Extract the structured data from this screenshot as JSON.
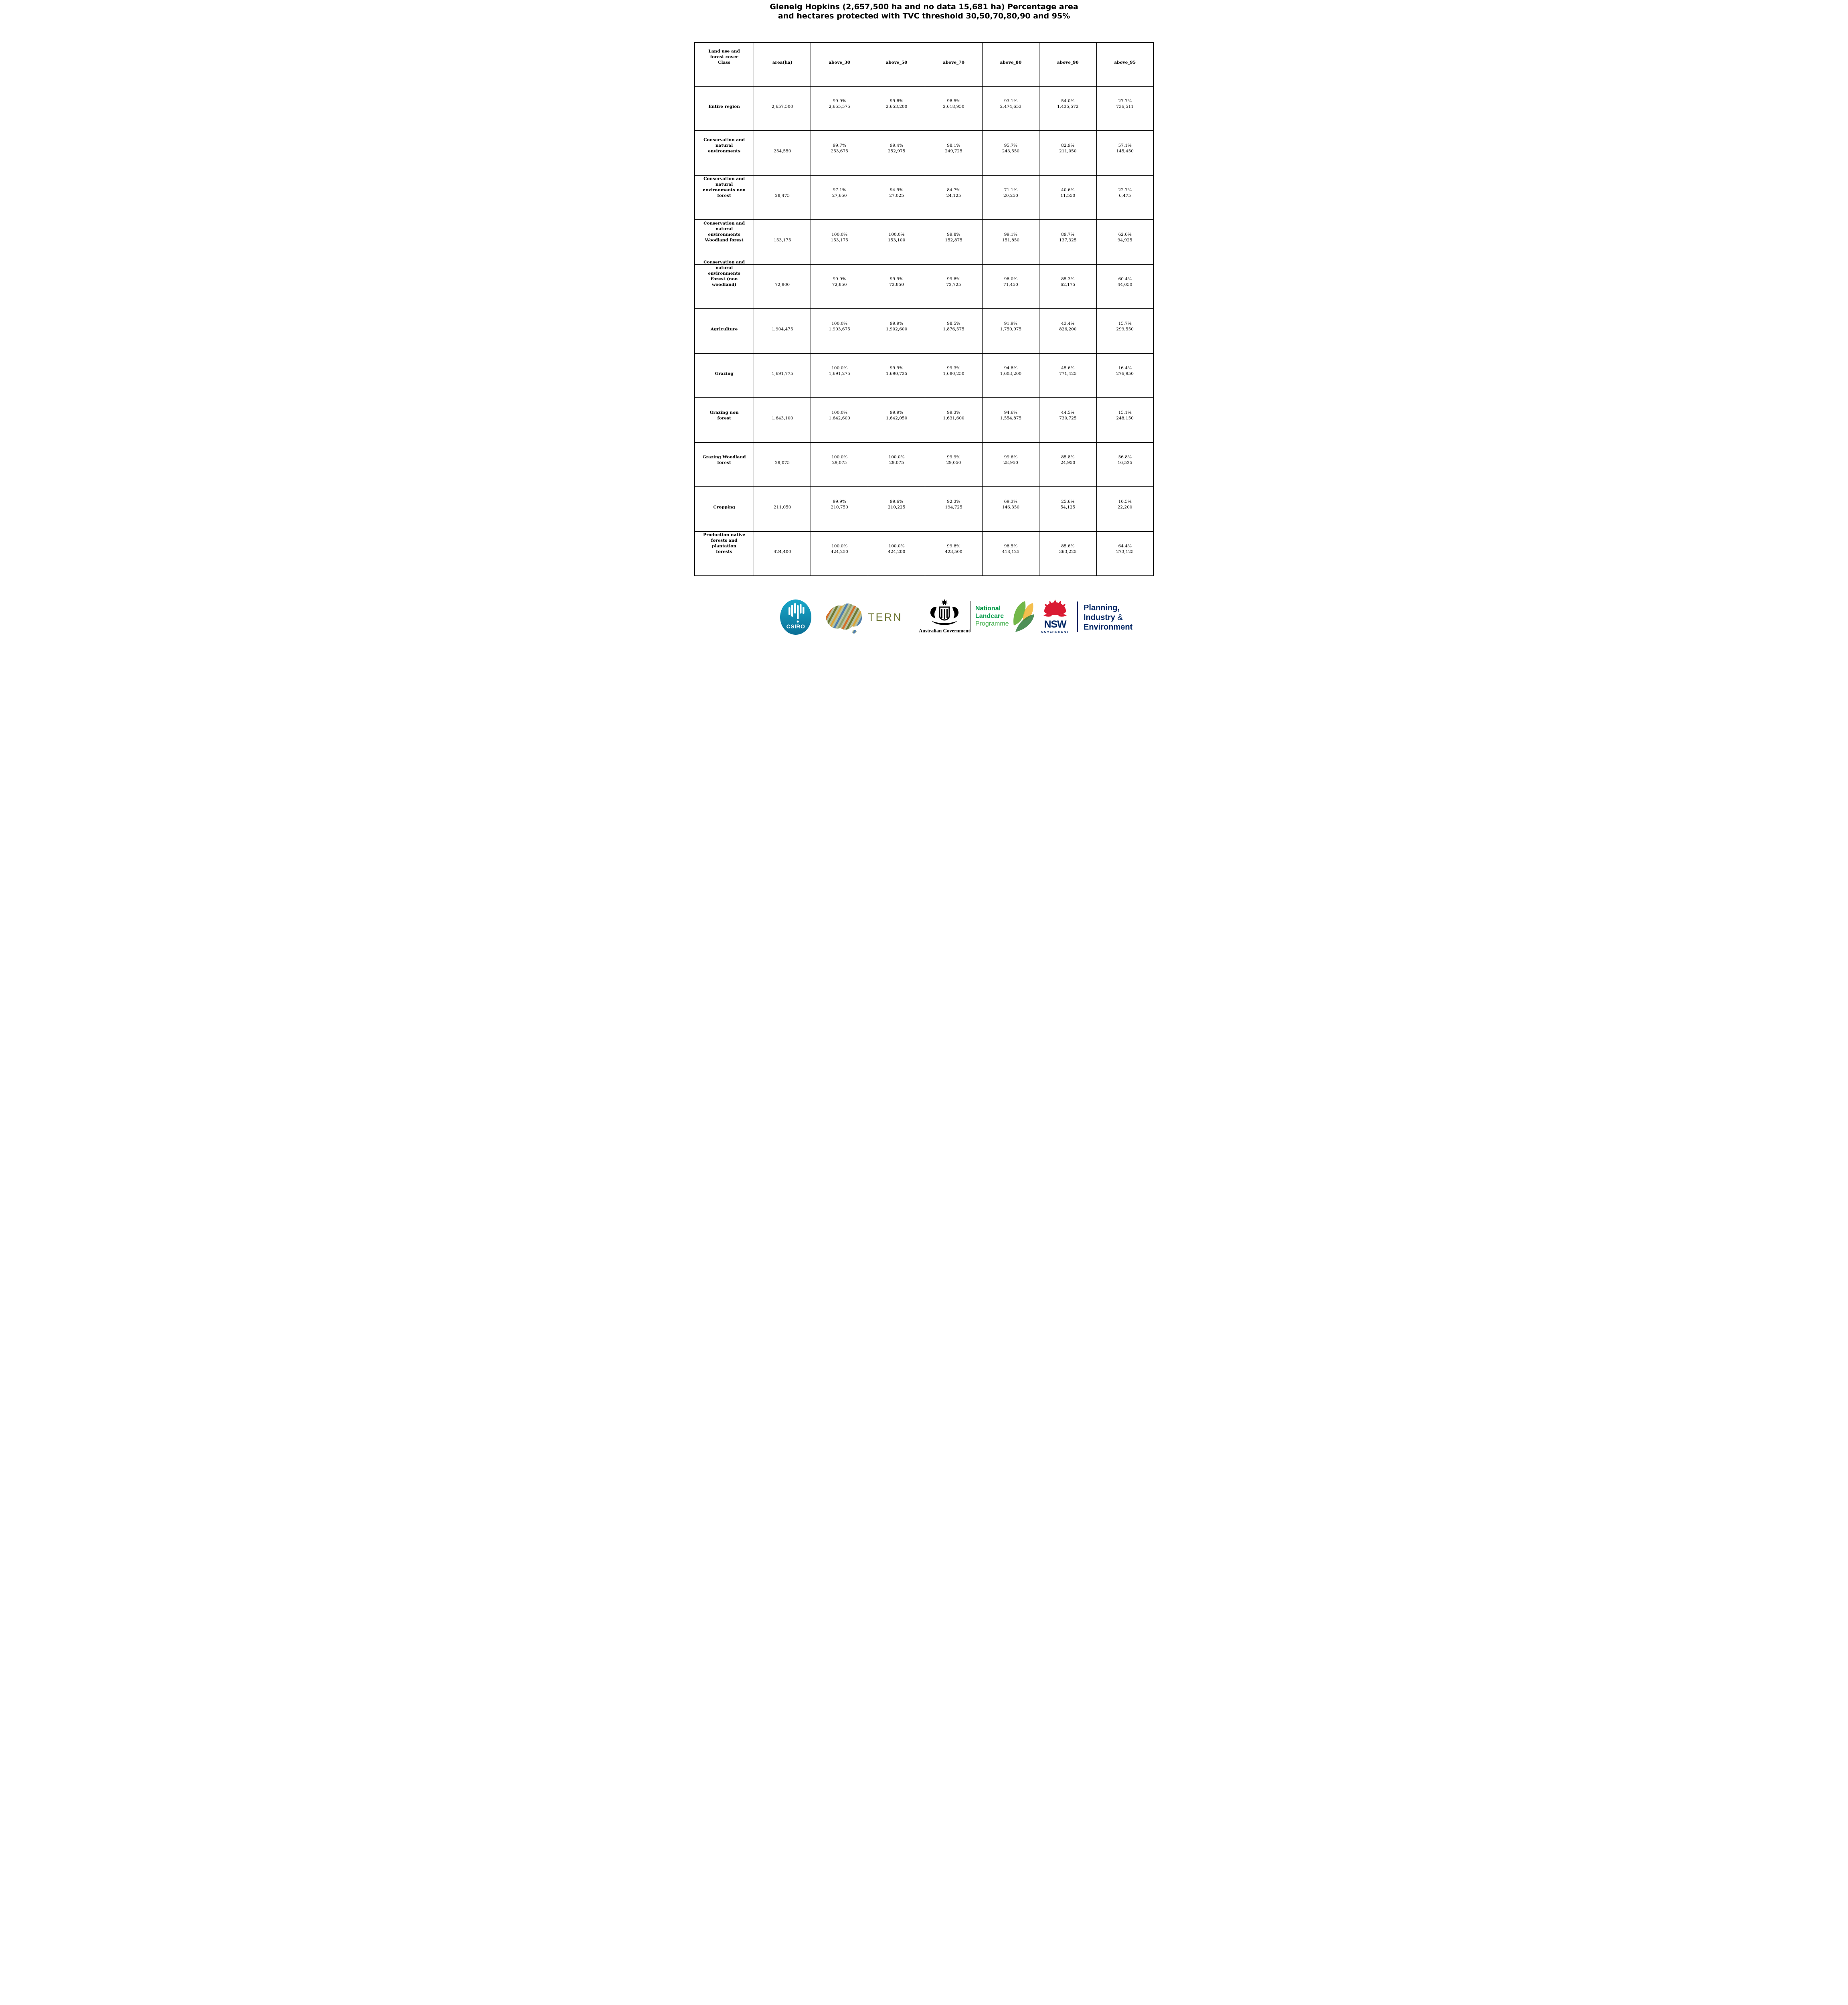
{
  "title": {
    "lines": [
      "Glenelg Hopkins (2,657,500 ha and no data 15,681 ha) Percentage area",
      "and hectares protected with TVC threshold 30,50,70,80,90 and 95%"
    ]
  },
  "chart_data": {
    "type": "table",
    "title": "Glenelg Hopkins (2,657,500 ha and no data 15,681 ha) Percentage area and hectares protected with TVC threshold 30,50,70,80,90 and 95%",
    "region_area_ha": "2,657,500",
    "no_data_ha": "15,681",
    "columns": [
      "Land use and forest cover Class",
      "area(ha)",
      "above_30",
      "above_50",
      "above_70",
      "above_80",
      "above_90",
      "above_95"
    ],
    "column_lines": [
      [
        "Land use and",
        "forest cover",
        "Class"
      ],
      [
        "area(ha)"
      ],
      [
        "above_30"
      ],
      [
        "above_50"
      ],
      [
        "above_70"
      ],
      [
        "above_80"
      ],
      [
        "above_90"
      ],
      [
        "above_95"
      ]
    ],
    "rows": [
      {
        "label": "Entire region",
        "label_lines": [
          "Entire region"
        ],
        "area": "2,657,500",
        "cells": [
          {
            "pct": "99.9%",
            "value": "2,655,575"
          },
          {
            "pct": "99.8%",
            "value": "2,653,200"
          },
          {
            "pct": "98.5%",
            "value": "2,618,950"
          },
          {
            "pct": "93.1%",
            "value": "2,474,653"
          },
          {
            "pct": "54.0%",
            "value": "1,435,572"
          },
          {
            "pct": "27.7%",
            "value": "736,511"
          }
        ]
      },
      {
        "label": "Conservation and natural environments",
        "label_lines": [
          "Conservation and",
          "natural",
          "environments"
        ],
        "area": "254,550",
        "cells": [
          {
            "pct": "99.7%",
            "value": "253,675"
          },
          {
            "pct": "99.4%",
            "value": "252,975"
          },
          {
            "pct": "98.1%",
            "value": "249,725"
          },
          {
            "pct": "95.7%",
            "value": "243,550"
          },
          {
            "pct": "82.9%",
            "value": "211,050"
          },
          {
            "pct": "57.1%",
            "value": "145,450"
          }
        ]
      },
      {
        "label": "Conservation and natural environments non forest",
        "label_lines": [
          "Conservation and",
          "natural",
          "environments non",
          "forest"
        ],
        "area": "28,475",
        "cells": [
          {
            "pct": "97.1%",
            "value": "27,650"
          },
          {
            "pct": "94.9%",
            "value": "27,025"
          },
          {
            "pct": "84.7%",
            "value": "24,125"
          },
          {
            "pct": "71.1%",
            "value": "20,250"
          },
          {
            "pct": "40.6%",
            "value": "11,550"
          },
          {
            "pct": "22.7%",
            "value": "6,475"
          }
        ]
      },
      {
        "label": "Conservation and natural environments Woodland forest",
        "label_lines": [
          "Conservation and",
          "natural",
          "environments",
          "Woodland forest"
        ],
        "area": "153,175",
        "cells": [
          {
            "pct": "100.0%",
            "value": "153,175"
          },
          {
            "pct": "100.0%",
            "value": "153,100"
          },
          {
            "pct": "99.8%",
            "value": "152,875"
          },
          {
            "pct": "99.1%",
            "value": "151,850"
          },
          {
            "pct": "89.7%",
            "value": "137,325"
          },
          {
            "pct": "62.0%",
            "value": "94,925"
          }
        ]
      },
      {
        "label": "Conservation and natural environments Forest (non woodland)",
        "label_lines": [
          "Conservation and",
          "natural",
          "environments",
          "Forest (non",
          "woodland)"
        ],
        "area": "72,900",
        "cells": [
          {
            "pct": "99.9%",
            "value": "72,850"
          },
          {
            "pct": "99.9%",
            "value": "72,850"
          },
          {
            "pct": "99.8%",
            "value": "72,725"
          },
          {
            "pct": "98.0%",
            "value": "71,450"
          },
          {
            "pct": "85.3%",
            "value": "62,175"
          },
          {
            "pct": "60.4%",
            "value": "44,050"
          }
        ]
      },
      {
        "label": "Agriculture",
        "label_lines": [
          "Agriculture"
        ],
        "area": "1,904,475",
        "cells": [
          {
            "pct": "100.0%",
            "value": "1,903,675"
          },
          {
            "pct": "99.9%",
            "value": "1,902,600"
          },
          {
            "pct": "98.5%",
            "value": "1,876,575"
          },
          {
            "pct": "91.9%",
            "value": "1,750,975"
          },
          {
            "pct": "43.4%",
            "value": "826,200"
          },
          {
            "pct": "15.7%",
            "value": "299,550"
          }
        ]
      },
      {
        "label": "Grazing",
        "label_lines": [
          "Grazing"
        ],
        "area": "1,691,775",
        "cells": [
          {
            "pct": "100.0%",
            "value": "1,691,275"
          },
          {
            "pct": "99.9%",
            "value": "1,690,725"
          },
          {
            "pct": "99.3%",
            "value": "1,680,250"
          },
          {
            "pct": "94.8%",
            "value": "1,603,200"
          },
          {
            "pct": "45.6%",
            "value": "771,425"
          },
          {
            "pct": "16.4%",
            "value": "276,950"
          }
        ]
      },
      {
        "label": "Grazing non forest",
        "label_lines": [
          "Grazing non",
          "forest"
        ],
        "area": "1,643,100",
        "cells": [
          {
            "pct": "100.0%",
            "value": "1,642,600"
          },
          {
            "pct": "99.9%",
            "value": "1,642,050"
          },
          {
            "pct": "99.3%",
            "value": "1,631,600"
          },
          {
            "pct": "94.6%",
            "value": "1,554,875"
          },
          {
            "pct": "44.5%",
            "value": "730,725"
          },
          {
            "pct": "15.1%",
            "value": "248,150"
          }
        ]
      },
      {
        "label": "Grazing Woodland forest",
        "label_lines": [
          "Grazing Woodland",
          "forest"
        ],
        "area": "29,075",
        "cells": [
          {
            "pct": "100.0%",
            "value": "29,075"
          },
          {
            "pct": "100.0%",
            "value": "29,075"
          },
          {
            "pct": "99.9%",
            "value": "29,050"
          },
          {
            "pct": "99.6%",
            "value": "28,950"
          },
          {
            "pct": "85.8%",
            "value": "24,950"
          },
          {
            "pct": "56.8%",
            "value": "16,525"
          }
        ]
      },
      {
        "label": "Cropping",
        "label_lines": [
          "Cropping"
        ],
        "area": "211,050",
        "cells": [
          {
            "pct": "99.9%",
            "value": "210,750"
          },
          {
            "pct": "99.6%",
            "value": "210,225"
          },
          {
            "pct": "92.3%",
            "value": "194,725"
          },
          {
            "pct": "69.3%",
            "value": "146,350"
          },
          {
            "pct": "25.6%",
            "value": "54,125"
          },
          {
            "pct": "10.5%",
            "value": "22,200"
          }
        ]
      },
      {
        "label": "Production native forests and plantation forests",
        "label_lines": [
          "Production native",
          "forests and",
          "plantation",
          "forests"
        ],
        "area": "424,400",
        "cells": [
          {
            "pct": "100.0%",
            "value": "424,250"
          },
          {
            "pct": "100.0%",
            "value": "424,200"
          },
          {
            "pct": "99.8%",
            "value": "423,500"
          },
          {
            "pct": "98.5%",
            "value": "418,125"
          },
          {
            "pct": "85.6%",
            "value": "363,225"
          },
          {
            "pct": "64.4%",
            "value": "273,125"
          }
        ]
      }
    ]
  },
  "footer": {
    "csiro": {
      "label": "CSIRO",
      "teal": "#0e8fb4"
    },
    "tern": {
      "label": "TERN",
      "olive": "#6e7634",
      "map_colors": [
        "#d4702a",
        "#6e7a33",
        "#4f7fae",
        "#d9a53a",
        "#8fa06a"
      ]
    },
    "australian_government": {
      "label": "Australian Government"
    },
    "landcare": {
      "line1": "National",
      "line2": "Landcare",
      "line3": "Programme",
      "green": "#009b48",
      "light_green": "#3fae49"
    },
    "nsw": {
      "label": "NSW",
      "sub": "GOVERNMENT",
      "red": "#da1a32",
      "navy": "#002664"
    },
    "planning": {
      "line1": "Planning,",
      "line2": "Industry",
      "amp": "&",
      "line3": "Environment",
      "navy": "#002664"
    }
  }
}
